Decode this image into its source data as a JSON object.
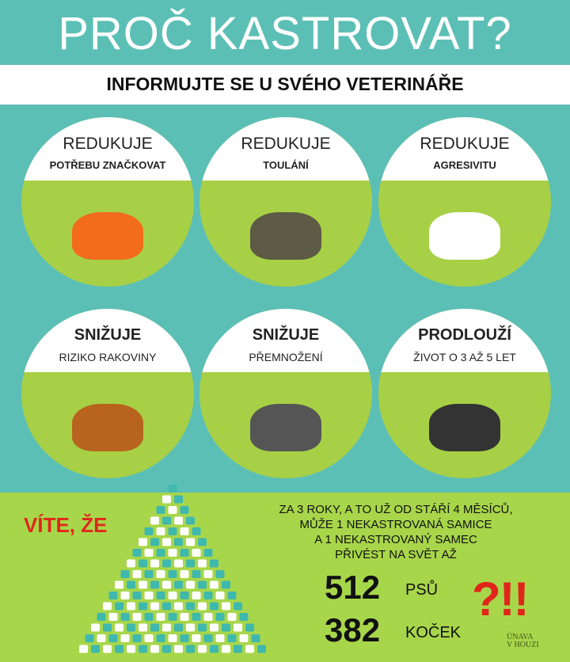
{
  "title": "PROČ KASTROVAT?",
  "subtitle": "INFORMUJTE SE U SVÉHO VETERINÁŘE",
  "colors": {
    "teal": "#5cbfb6",
    "green": "#a8d64a",
    "red": "#e0261b"
  },
  "circles": [
    {
      "line1": "REDUKUJE",
      "line2": "POTŘEBU ZNAČKOVAT",
      "image": "orange-cat"
    },
    {
      "line1": "REDUKUJE",
      "line2": "TOULÁNÍ",
      "image": "dogs-at-door"
    },
    {
      "line1": "REDUKUJE",
      "line2": "AGRESIVITU",
      "image": "snarling-dog"
    },
    {
      "line1": "SNIŽUJE",
      "line2": "RIZIKO RAKOVINY",
      "image": "brown-dog"
    },
    {
      "line1": "SNIŽUJE",
      "line2": "PŘEMNOŽENÍ",
      "image": "cat-with-kittens"
    },
    {
      "line1": "PRODLOUŽÍ",
      "line2": "ŽIVOT O 3 AŽ 5 LET",
      "image": "husky-and-cat"
    }
  ],
  "bottom": {
    "heading": "VÍTE, ŽE",
    "lines": [
      "ZA 3 ROKY, A TO UŽ OD STÁŘÍ 4 MĚSÍCŮ,",
      "MŮŽE 1 NEKASTROVANÁ SAMICE",
      "A 1 NEKASTROVANÝ SAMEC",
      "PŘIVÉST NA SVĚT AŽ"
    ],
    "dogs_count": "512",
    "dogs_label": "PSŮ",
    "cats_count": "382",
    "cats_label": "KOČEK",
    "exclaim": "?!!",
    "logo": "ÚNAVA V HOUZI"
  }
}
